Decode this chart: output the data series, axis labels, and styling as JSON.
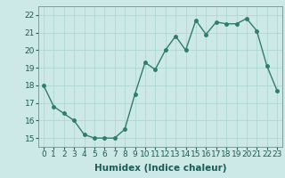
{
  "x": [
    0,
    1,
    2,
    3,
    4,
    5,
    6,
    7,
    8,
    9,
    10,
    11,
    12,
    13,
    14,
    15,
    16,
    17,
    18,
    19,
    20,
    21,
    22,
    23
  ],
  "y": [
    18.0,
    16.8,
    16.4,
    16.0,
    15.2,
    15.0,
    15.0,
    15.0,
    15.5,
    17.5,
    19.3,
    18.9,
    20.0,
    20.8,
    20.0,
    21.7,
    20.9,
    21.6,
    21.5,
    21.5,
    21.8,
    21.1,
    19.1,
    17.7
  ],
  "line_color": "#2e7d6e",
  "marker_color": "#2e7d6e",
  "bg_color": "#cce9e7",
  "grid_color": "#aad4d1",
  "xlabel": "Humidex (Indice chaleur)",
  "xlim": [
    -0.5,
    23.5
  ],
  "ylim": [
    14.5,
    22.5
  ],
  "yticks": [
    15,
    16,
    17,
    18,
    19,
    20,
    21,
    22
  ],
  "xticks": [
    0,
    1,
    2,
    3,
    4,
    5,
    6,
    7,
    8,
    9,
    10,
    11,
    12,
    13,
    14,
    15,
    16,
    17,
    18,
    19,
    20,
    21,
    22,
    23
  ],
  "xlabel_fontsize": 7.5,
  "tick_fontsize": 6.5,
  "line_width": 1.0,
  "marker_size": 2.5
}
